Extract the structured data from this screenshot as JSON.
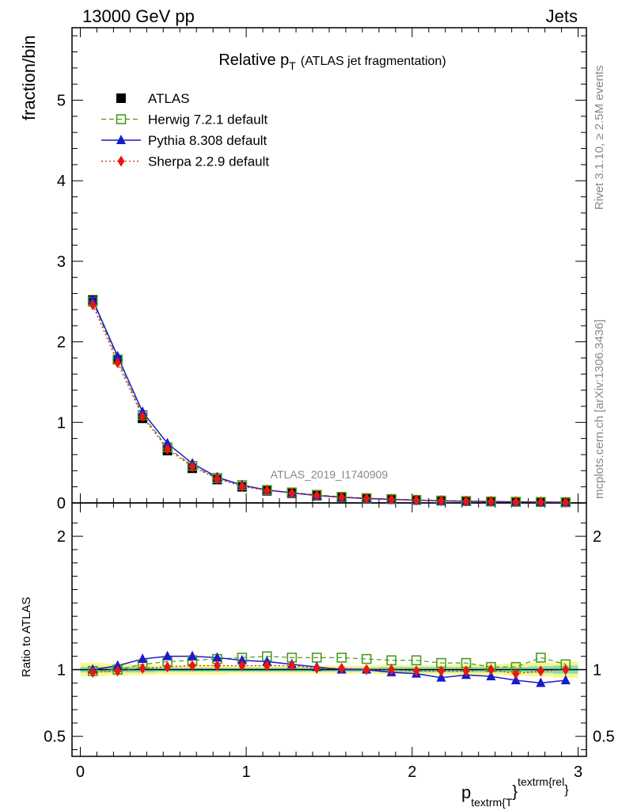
{
  "header": {
    "left": "13000 GeV pp",
    "right": "Jets"
  },
  "side_labels": {
    "rivet": "Rivet 3.1.10, ≥ 2.5M events",
    "mcplots": "mcplots.cern.ch [arXiv:1306.3436]"
  },
  "watermark": "ATLAS_2019_I1740909",
  "chart_data": {
    "type": "line",
    "title": "Relative p",
    "title_sub": "T",
    "title_suffix": "(ATLAS jet fragmentation)",
    "ylabel": "fraction/bin",
    "ratio_ylabel": "Ratio to ATLAS",
    "xlabel_main": "p",
    "xlabel_sub": "textrm{T",
    "xlabel_sup": "textrm{rel",
    "xlabel_close": "}",
    "xlim": [
      -0.05,
      3.05
    ],
    "ylim": [
      0,
      5.9
    ],
    "ratio_ylim": [
      0.35,
      2.25
    ],
    "x_ticks": [
      0,
      1,
      2,
      3
    ],
    "y_ticks": [
      0,
      1,
      2,
      3,
      4,
      5
    ],
    "ratio_y_ticks": [
      0.5,
      1,
      2
    ],
    "x": [
      0.075,
      0.225,
      0.375,
      0.525,
      0.675,
      0.825,
      0.975,
      1.125,
      1.275,
      1.425,
      1.575,
      1.725,
      1.875,
      2.025,
      2.175,
      2.325,
      2.475,
      2.625,
      2.775,
      2.925
    ],
    "legend": [
      {
        "name": "ATLAS",
        "color": "#000000",
        "marker": "square"
      },
      {
        "name": "Herwig 7.2.1 default",
        "color": "#4a9a1e",
        "marker": "open-square"
      },
      {
        "name": "Pythia 8.308 default",
        "color": "#1a1acc",
        "marker": "triangle"
      },
      {
        "name": "Sherpa 2.2.9 default",
        "color": "#e8180c",
        "marker": "diamond"
      }
    ],
    "series": [
      {
        "name": "ATLAS",
        "values": [
          2.52,
          1.78,
          1.05,
          0.65,
          0.43,
          0.29,
          0.2,
          0.15,
          0.12,
          0.09,
          0.07,
          0.055,
          0.045,
          0.035,
          0.028,
          0.022,
          0.018,
          0.014,
          0.011,
          0.009
        ]
      },
      {
        "name": "Herwig 7.2.1 default",
        "values": [
          2.5,
          1.78,
          1.09,
          0.69,
          0.46,
          0.31,
          0.22,
          0.16,
          0.13,
          0.1,
          0.075,
          0.059,
          0.048,
          0.037,
          0.029,
          0.023,
          0.018,
          0.014,
          0.012,
          0.009
        ]
      },
      {
        "name": "Pythia 8.308 default",
        "values": [
          2.52,
          1.82,
          1.13,
          0.74,
          0.49,
          0.32,
          0.22,
          0.16,
          0.125,
          0.092,
          0.07,
          0.054,
          0.044,
          0.034,
          0.026,
          0.021,
          0.017,
          0.013,
          0.01,
          0.0085
        ]
      },
      {
        "name": "Sherpa 2.2.9 default",
        "values": [
          2.46,
          1.74,
          1.07,
          0.67,
          0.45,
          0.3,
          0.205,
          0.155,
          0.123,
          0.091,
          0.07,
          0.055,
          0.045,
          0.035,
          0.028,
          0.022,
          0.018,
          0.0136,
          0.011,
          0.009
        ]
      }
    ],
    "ratio_series": [
      {
        "name": "Herwig 7.2.1 default",
        "values": [
          0.99,
          1.0,
          1.04,
          1.06,
          1.07,
          1.08,
          1.09,
          1.1,
          1.09,
          1.09,
          1.09,
          1.08,
          1.07,
          1.07,
          1.05,
          1.05,
          1.02,
          1.02,
          1.09,
          1.04
        ]
      },
      {
        "name": "Pythia 8.308 default",
        "values": [
          1.0,
          1.03,
          1.08,
          1.1,
          1.1,
          1.09,
          1.07,
          1.06,
          1.04,
          1.02,
          1.0,
          1.0,
          0.98,
          0.97,
          0.94,
          0.96,
          0.95,
          0.92,
          0.9,
          0.92
        ]
      },
      {
        "name": "Sherpa 2.2.9 default",
        "values": [
          0.98,
          0.99,
          1.01,
          1.02,
          1.03,
          1.03,
          1.03,
          1.03,
          1.03,
          1.01,
          1.01,
          1.0,
          1.0,
          0.99,
          0.99,
          0.99,
          1.0,
          0.97,
          0.99,
          1.0
        ]
      }
    ],
    "uncertainty_bands": {
      "stat": [
        0.02,
        0.02,
        0.02,
        0.015,
        0.015,
        0.015,
        0.015,
        0.015,
        0.015,
        0.015,
        0.015,
        0.015,
        0.02,
        0.02,
        0.02,
        0.02,
        0.02,
        0.02,
        0.025,
        0.03
      ],
      "total": [
        0.05,
        0.045,
        0.04,
        0.035,
        0.035,
        0.035,
        0.03,
        0.03,
        0.03,
        0.03,
        0.03,
        0.03,
        0.035,
        0.035,
        0.035,
        0.04,
        0.04,
        0.045,
        0.05,
        0.06
      ],
      "stat_color": "#7fe0b4",
      "total_color": "#fbf58c"
    }
  }
}
